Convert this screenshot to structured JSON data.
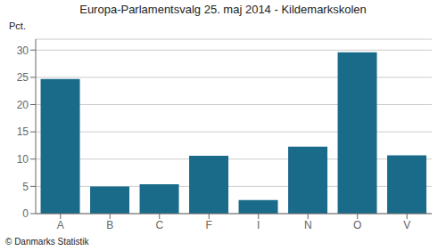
{
  "chart_data": {
    "type": "bar",
    "title": "Europa-Parlamentsvalg 25. maj 2014 - Kildemarkskolen",
    "ylabel": "Pct.",
    "annotations": [
      "© Danmarks Statistik"
    ],
    "categories": [
      "A",
      "B",
      "C",
      "F",
      "I",
      "N",
      "O",
      "V"
    ],
    "values": [
      24.7,
      5.0,
      5.4,
      10.6,
      2.5,
      12.3,
      29.6,
      10.7
    ],
    "color": "#1a6b8a",
    "ylim": [
      0,
      32
    ],
    "yticks": [
      0,
      5,
      10,
      15,
      20,
      25,
      30
    ],
    "grid": true
  }
}
